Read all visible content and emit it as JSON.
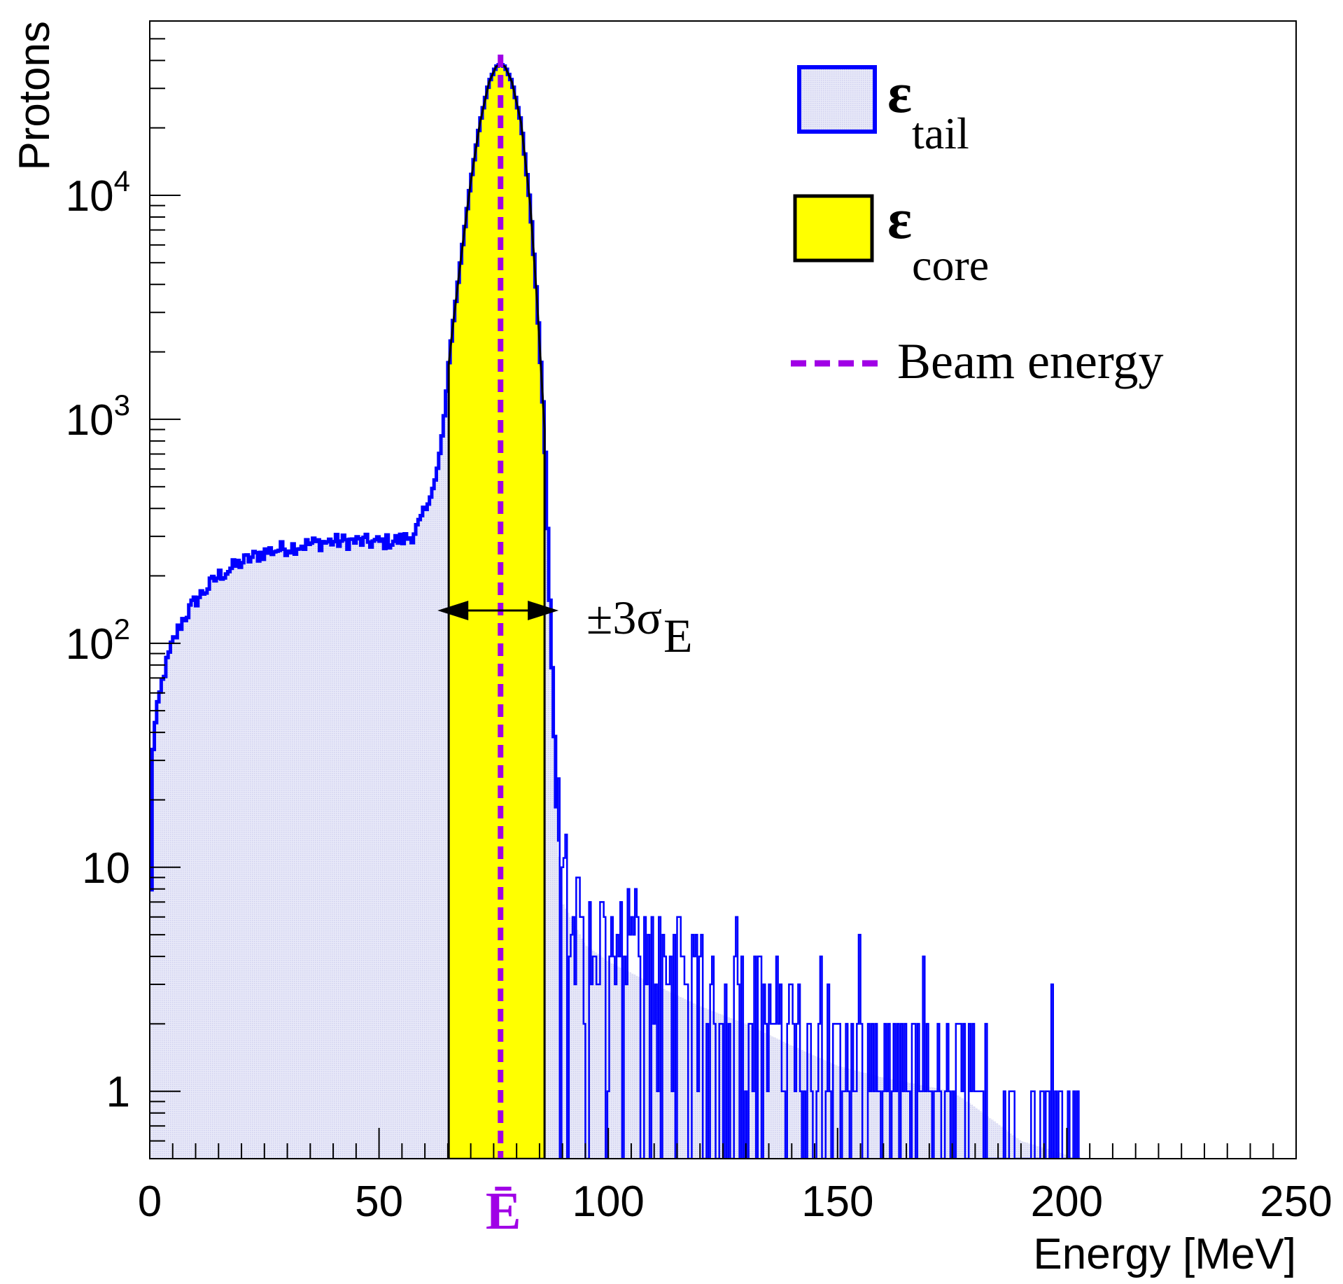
{
  "chart_data": {
    "type": "histogram",
    "title": "",
    "xlabel": "Energy [MeV]",
    "ylabel": "Protons",
    "xlim": [
      0,
      250
    ],
    "ylim": [
      0.5,
      60000
    ],
    "yscale": "log",
    "x_ticks": [
      0,
      50,
      100,
      150,
      200,
      250
    ],
    "y_ticks": [
      {
        "value": 1,
        "label": "1"
      },
      {
        "value": 10,
        "label": "10"
      },
      {
        "value": 100,
        "base": "10",
        "exp": "2"
      },
      {
        "value": 1000,
        "base": "10",
        "exp": "3"
      },
      {
        "value": 10000,
        "base": "10",
        "exp": "4"
      }
    ],
    "beam_energy": 76.5,
    "beam_energy_label": "Ē",
    "core_range": [
      65.2,
      86.1
    ],
    "core_annotation": {
      "prefix": "±3σ",
      "sub": "E"
    },
    "spectrum_profile": [
      [
        0,
        2
      ],
      [
        0.5,
        30
      ],
      [
        1,
        40
      ],
      [
        2,
        55
      ],
      [
        3,
        72
      ],
      [
        5,
        100
      ],
      [
        7,
        125
      ],
      [
        10,
        155
      ],
      [
        15,
        200
      ],
      [
        20,
        230
      ],
      [
        25,
        255
      ],
      [
        30,
        268
      ],
      [
        35,
        278
      ],
      [
        40,
        285
      ],
      [
        45,
        285
      ],
      [
        50,
        282
      ],
      [
        55,
        290
      ],
      [
        57,
        300
      ],
      [
        59,
        345
      ],
      [
        61,
        430
      ],
      [
        62.5,
        560
      ],
      [
        63.5,
        760
      ],
      [
        64.5,
        1150
      ],
      [
        65.2,
        1750
      ],
      [
        66,
        2500
      ],
      [
        68,
        5500
      ],
      [
        70,
        11500
      ],
      [
        72,
        21000
      ],
      [
        74,
        32000
      ],
      [
        75.5,
        37500
      ],
      [
        76.5,
        38500
      ],
      [
        77.5,
        37500
      ],
      [
        79,
        32000
      ],
      [
        81,
        21000
      ],
      [
        83,
        9000
      ],
      [
        84.5,
        3300
      ],
      [
        86.1,
        900
      ],
      [
        87,
        220
      ],
      [
        88,
        55
      ],
      [
        89,
        13
      ],
      [
        90,
        7
      ],
      [
        95,
        4.5
      ],
      [
        100,
        3.8
      ],
      [
        110,
        3
      ],
      [
        120,
        2.4
      ],
      [
        130,
        2
      ],
      [
        140,
        1.6
      ],
      [
        150,
        1.3
      ],
      [
        160,
        1.15
      ],
      [
        170,
        1.05
      ],
      [
        175,
        1
      ],
      [
        180,
        0.85
      ],
      [
        190,
        0.6
      ],
      [
        200,
        0.52
      ],
      [
        202,
        0.5
      ],
      [
        250,
        0.5
      ]
    ],
    "series": [
      {
        "name": "ε tail",
        "symbol": "ε",
        "sub": "tail",
        "fill": "#dfe0f5",
        "stroke": "#0000ff"
      },
      {
        "name": "ε core",
        "symbol": "ε",
        "sub": "core",
        "fill": "#ffff00",
        "stroke": "#000000"
      },
      {
        "name": "Beam energy",
        "style": "dashed",
        "stroke": "#a000e6"
      }
    ],
    "legend_position": "top-right"
  }
}
